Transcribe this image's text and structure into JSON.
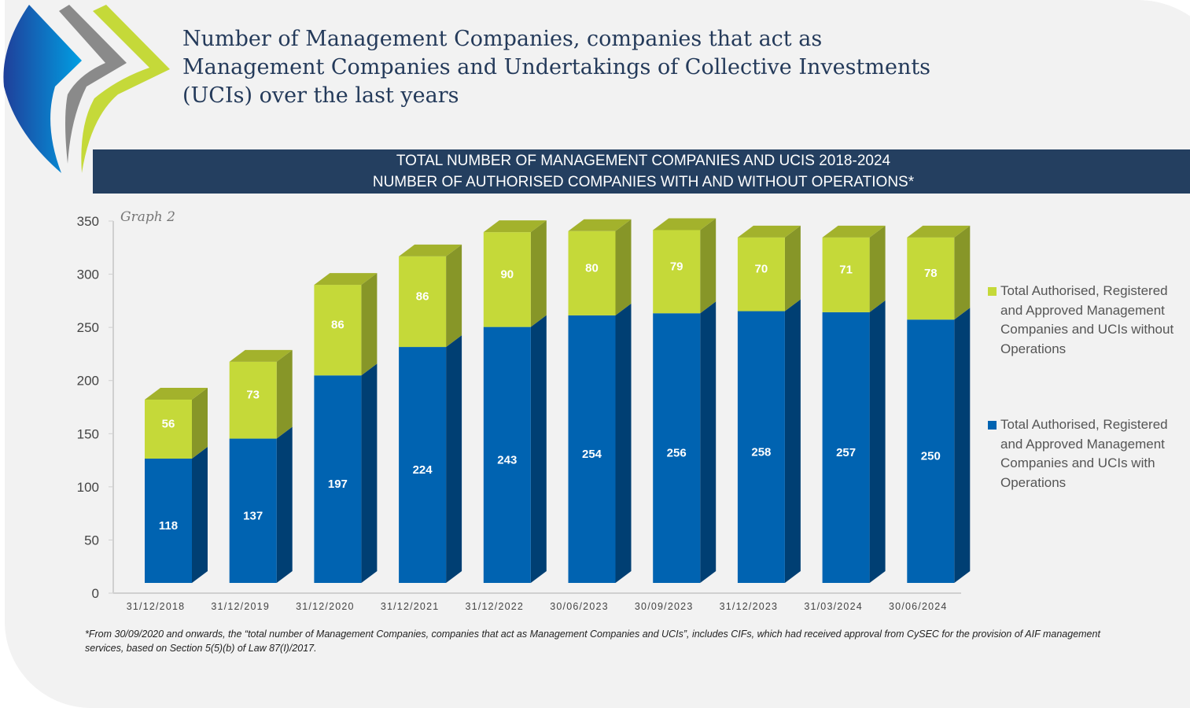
{
  "header": {
    "title": "Number of Management Companies, companies that act as Management Companies and Undertakings of Collective Investments (UCIs) over the last years",
    "banner_line1": "TOTAL NUMBER OF MANAGEMENT COMPANIES AND UCIS 2018-2024",
    "banner_line2": "NUMBER OF AUTHORISED COMPANIES WITH AND WITHOUT OPERATIONS*"
  },
  "chart_data": {
    "type": "bar",
    "stacked": true,
    "three_d": true,
    "graph_label": "Graph 2",
    "categories": [
      "31/12/2018",
      "31/12/2019",
      "31/12/2020",
      "31/12/2021",
      "31/12/2022",
      "30/06/2023",
      "30/09/2023",
      "31/12/2023",
      "31/03/2024",
      "30/06/2024"
    ],
    "series": [
      {
        "name": "Total Authorised, Registered and Approved Management Companies and UCIs with Operations",
        "color": "#0063b1",
        "values": [
          118,
          137,
          197,
          224,
          243,
          254,
          256,
          258,
          257,
          250
        ]
      },
      {
        "name": "Total Authorised, Registered and Approved Management Companies and UCIs without Operations",
        "color": "#c5d939",
        "values": [
          56,
          73,
          86,
          86,
          90,
          80,
          79,
          70,
          71,
          78
        ]
      }
    ],
    "ylim": [
      0,
      350
    ],
    "yticks": [
      0,
      50,
      100,
      150,
      200,
      250,
      300,
      350
    ],
    "legend_position": "right"
  },
  "footnote": "*From 30/09/2020 and onwards, the “total number of Management Companies, companies that act as Management Companies and UCIs”, includes CIFs, which had received approval from CySEC for the provision of AIF management services, based on Section 5(5)(b) of Law 87(I)/2017."
}
